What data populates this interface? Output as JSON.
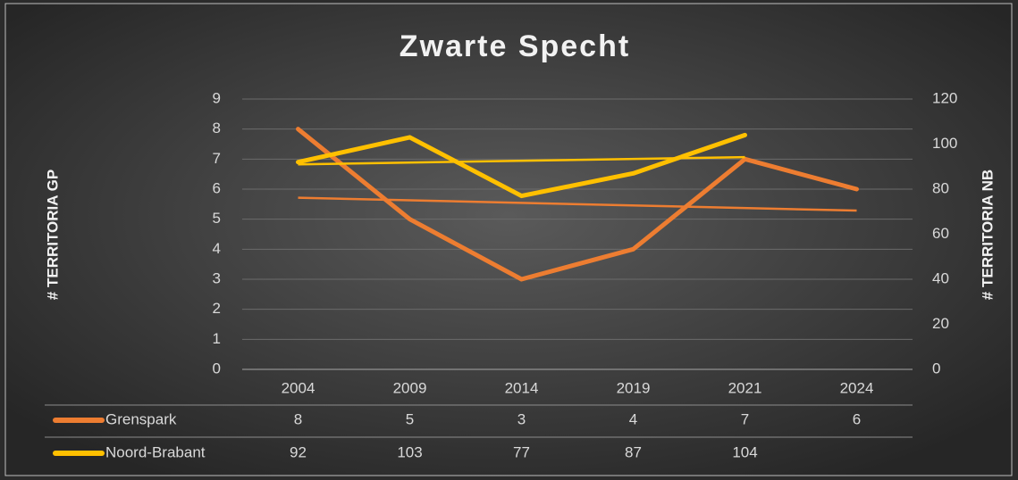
{
  "chart_data": {
    "type": "line",
    "title": "Zwarte Specht",
    "y_label": "# TERRITORIA GP",
    "y2_label": "# TERRITORIA NB",
    "categories": [
      "2004",
      "2009",
      "2014",
      "2019",
      "2021",
      "2024"
    ],
    "series": [
      {
        "name": "Grenspark",
        "color": "#ed7d31",
        "values": [
          8,
          5,
          3,
          4,
          7,
          6
        ]
      },
      {
        "name": "Noord-Brabant",
        "color": "#ffc000",
        "axis": "y2",
        "values": [
          92,
          103,
          77,
          87,
          104,
          null
        ]
      }
    ],
    "ylim": [
      0,
      9
    ],
    "yticks": [
      0,
      1,
      2,
      3,
      4,
      5,
      6,
      7,
      8,
      9
    ],
    "y2lim": [
      0,
      120
    ],
    "y2ticks": [
      0,
      20,
      40,
      60,
      80,
      100,
      120
    ],
    "grid": true,
    "trendline": true,
    "data_table": true
  }
}
